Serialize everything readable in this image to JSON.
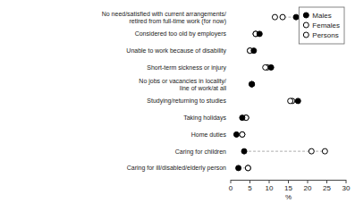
{
  "chart_data": {
    "type": "dot",
    "categories": [
      "No need/satisfied with current arrangements/\nretired from full-time work (for now)",
      "Considered too old by employers",
      "Unable to work because of disability",
      "Short-term sickness or injury",
      "No jobs or vacancies in locality/\nline of work/at all",
      "Studying/returning to studies",
      "Taking holidays",
      "Home duties",
      "Caring for children",
      "Caring for ill/disabled/elderly person"
    ],
    "series": [
      {
        "name": "Males",
        "color": "#000000",
        "marker": "filled-circle",
        "values": [
          17.0,
          7.5,
          6.0,
          10.5,
          5.5,
          17.5,
          3.0,
          1.5,
          3.5,
          2.0
        ]
      },
      {
        "name": "Females",
        "color": "#000000",
        "marker": "open-circle",
        "values": [
          11.5,
          6.5,
          5.0,
          9.0,
          5.5,
          15.5,
          4.0,
          3.0,
          21.0,
          4.5
        ]
      },
      {
        "name": "Persons",
        "color": "#000000",
        "marker": "open-circle",
        "values": [
          13.5,
          6.5,
          5.0,
          9.5,
          5.5,
          16.0,
          4.0,
          3.0,
          24.5,
          4.5
        ]
      }
    ],
    "xlim": [
      0,
      30
    ],
    "xticks": [
      0,
      5,
      10,
      15,
      20,
      25,
      30
    ],
    "xlabel": "%",
    "grid": false,
    "legend": "upper right"
  }
}
